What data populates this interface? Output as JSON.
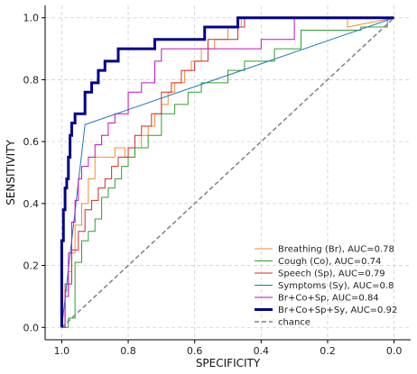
{
  "chart_data": {
    "type": "line",
    "xlabel": "SPECIFICITY",
    "ylabel": "SENSITIVITY",
    "xlim": [
      1.05,
      -0.05
    ],
    "ylim": [
      -0.04,
      1.04
    ],
    "x_reversed": true,
    "x_ticks": [
      "1.0",
      "0.8",
      "0.6",
      "0.4",
      "0.2",
      "0.0"
    ],
    "x_tick_values": [
      1.0,
      0.8,
      0.6,
      0.4,
      0.2,
      0.0
    ],
    "y_ticks": [
      "0.0",
      "0.2",
      "0.4",
      "0.6",
      "0.8",
      "1.0"
    ],
    "y_tick_values": [
      0.0,
      0.2,
      0.4,
      0.6,
      0.8,
      1.0
    ],
    "grid": true,
    "legend_position": "lower-right",
    "series": [
      {
        "name": "Breathing (Br), AUC=0.78",
        "color": "#f28e2b",
        "width": 1,
        "dashed": false,
        "x": [
          1.0,
          0.99,
          0.99,
          0.98,
          0.98,
          0.97,
          0.97,
          0.96,
          0.96,
          0.94,
          0.94,
          0.92,
          0.92,
          0.9,
          0.9,
          0.87,
          0.87,
          0.84,
          0.84,
          0.81,
          0.81,
          0.78,
          0.78,
          0.76,
          0.76,
          0.74,
          0.74,
          0.72,
          0.72,
          0.7,
          0.7,
          0.68,
          0.68,
          0.66,
          0.66,
          0.63,
          0.63,
          0.61,
          0.61,
          0.58,
          0.58,
          0.54,
          0.54,
          0.5,
          0.5,
          0.46,
          0.46,
          0.14,
          0.14,
          0.0
        ],
        "y": [
          0.0,
          0.0,
          0.12,
          0.12,
          0.18,
          0.18,
          0.24,
          0.24,
          0.33,
          0.33,
          0.4,
          0.4,
          0.48,
          0.48,
          0.55,
          0.55,
          0.55,
          0.55,
          0.58,
          0.58,
          0.55,
          0.55,
          0.58,
          0.58,
          0.62,
          0.62,
          0.65,
          0.65,
          0.69,
          0.69,
          0.72,
          0.72,
          0.76,
          0.76,
          0.79,
          0.79,
          0.83,
          0.83,
          0.86,
          0.86,
          0.9,
          0.9,
          0.93,
          0.93,
          0.97,
          0.97,
          1.0,
          1.0,
          0.97,
          1.0
        ]
      },
      {
        "name": "Cough (Co), AUC=0.74",
        "color": "#2ca02c",
        "width": 1,
        "dashed": false,
        "x": [
          1.0,
          0.98,
          0.98,
          0.96,
          0.96,
          0.94,
          0.94,
          0.92,
          0.92,
          0.9,
          0.9,
          0.88,
          0.88,
          0.86,
          0.86,
          0.84,
          0.84,
          0.82,
          0.82,
          0.8,
          0.8,
          0.78,
          0.78,
          0.74,
          0.74,
          0.7,
          0.7,
          0.66,
          0.66,
          0.62,
          0.62,
          0.58,
          0.58,
          0.5,
          0.5,
          0.45,
          0.45,
          0.36,
          0.36,
          0.28,
          0.28,
          0.1,
          0.1,
          0.02,
          0.02,
          0.0
        ],
        "y": [
          0.0,
          0.0,
          0.03,
          0.03,
          0.21,
          0.21,
          0.28,
          0.28,
          0.31,
          0.31,
          0.35,
          0.35,
          0.42,
          0.42,
          0.45,
          0.45,
          0.48,
          0.48,
          0.52,
          0.52,
          0.55,
          0.55,
          0.58,
          0.58,
          0.62,
          0.62,
          0.69,
          0.69,
          0.72,
          0.72,
          0.76,
          0.76,
          0.79,
          0.79,
          0.83,
          0.83,
          0.86,
          0.86,
          0.9,
          0.9,
          0.96,
          0.96,
          0.97,
          0.97,
          1.0,
          1.0
        ]
      },
      {
        "name": "Speech (Sp), AUC=0.79",
        "color": "#d62728",
        "width": 1,
        "dashed": false,
        "x": [
          1.0,
          0.99,
          0.99,
          0.97,
          0.97,
          0.95,
          0.95,
          0.93,
          0.93,
          0.91,
          0.91,
          0.89,
          0.89,
          0.87,
          0.87,
          0.85,
          0.85,
          0.83,
          0.83,
          0.8,
          0.8,
          0.78,
          0.78,
          0.76,
          0.76,
          0.73,
          0.73,
          0.7,
          0.7,
          0.67,
          0.67,
          0.64,
          0.64,
          0.6,
          0.6,
          0.56,
          0.56,
          0.47,
          0.47,
          0.45,
          0.45,
          0.36,
          0.36,
          0.0
        ],
        "y": [
          0.0,
          0.0,
          0.14,
          0.14,
          0.25,
          0.25,
          0.31,
          0.31,
          0.38,
          0.38,
          0.41,
          0.41,
          0.45,
          0.45,
          0.48,
          0.48,
          0.52,
          0.52,
          0.55,
          0.55,
          0.58,
          0.58,
          0.62,
          0.62,
          0.65,
          0.65,
          0.69,
          0.69,
          0.76,
          0.76,
          0.79,
          0.79,
          0.83,
          0.83,
          0.86,
          0.86,
          0.93,
          0.93,
          0.97,
          0.97,
          1.0,
          1.0,
          1.0,
          1.0
        ]
      },
      {
        "name": "Symptoms (Sy), AUC=0.8",
        "color": "#1f77b4",
        "width": 1,
        "dashed": false,
        "x": [
          1.0,
          0.93,
          0.0
        ],
        "y": [
          0.0,
          0.655,
          1.0
        ]
      },
      {
        "name": "Br+Co+Sp, AUC=0.84",
        "color": "#c20fc2",
        "width": 1,
        "dashed": false,
        "x": [
          1.0,
          0.99,
          0.99,
          0.98,
          0.98,
          0.97,
          0.97,
          0.96,
          0.96,
          0.95,
          0.95,
          0.94,
          0.94,
          0.92,
          0.92,
          0.9,
          0.9,
          0.88,
          0.88,
          0.86,
          0.86,
          0.84,
          0.84,
          0.8,
          0.8,
          0.76,
          0.76,
          0.72,
          0.72,
          0.7,
          0.7,
          0.62,
          0.62,
          0.4,
          0.4,
          0.3,
          0.3,
          0.0
        ],
        "y": [
          0.0,
          0.0,
          0.1,
          0.1,
          0.24,
          0.24,
          0.34,
          0.34,
          0.41,
          0.41,
          0.48,
          0.48,
          0.52,
          0.52,
          0.55,
          0.55,
          0.59,
          0.59,
          0.62,
          0.62,
          0.66,
          0.66,
          0.69,
          0.69,
          0.76,
          0.76,
          0.79,
          0.79,
          0.86,
          0.86,
          0.9,
          0.9,
          0.9,
          0.9,
          0.93,
          0.93,
          1.0,
          1.0
        ]
      },
      {
        "name": "Br+Co+Sp+Sy, AUC=0.92",
        "color": "#00008b",
        "width": 3,
        "dashed": false,
        "x": [
          1.0,
          1.0,
          0.995,
          0.995,
          0.99,
          0.99,
          0.985,
          0.985,
          0.98,
          0.98,
          0.975,
          0.975,
          0.97,
          0.97,
          0.96,
          0.96,
          0.93,
          0.93,
          0.91,
          0.91,
          0.89,
          0.89,
          0.87,
          0.87,
          0.85,
          0.85,
          0.83,
          0.83,
          0.8,
          0.8,
          0.72,
          0.72,
          0.57,
          0.57,
          0.47,
          0.47,
          0.0
        ],
        "y": [
          0.0,
          0.28,
          0.28,
          0.38,
          0.38,
          0.45,
          0.45,
          0.48,
          0.48,
          0.55,
          0.55,
          0.62,
          0.62,
          0.66,
          0.66,
          0.69,
          0.69,
          0.76,
          0.76,
          0.79,
          0.79,
          0.83,
          0.83,
          0.86,
          0.86,
          0.86,
          0.86,
          0.9,
          0.9,
          0.9,
          0.9,
          0.93,
          0.93,
          0.97,
          0.97,
          1.0,
          1.0
        ]
      },
      {
        "name": "chance",
        "color": "#808080",
        "width": 1.5,
        "dashed": true,
        "x": [
          1.0,
          0.0
        ],
        "y": [
          0.0,
          1.0
        ]
      }
    ]
  }
}
